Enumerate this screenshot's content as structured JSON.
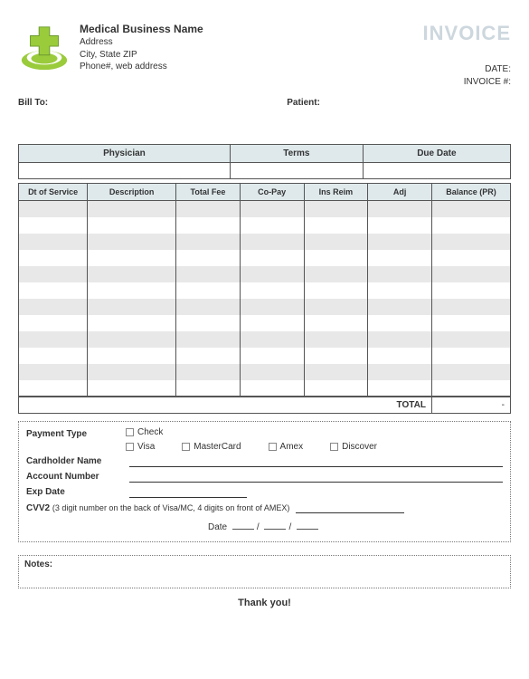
{
  "header": {
    "business_name": "Medical Business Name",
    "address": "Address",
    "city_state_zip": "City, State ZIP",
    "phone_web": "Phone#, web address",
    "invoice_label": "INVOICE",
    "date_label": "DATE:",
    "invoice_no_label": "INVOICE #:"
  },
  "parties": {
    "bill_to_label": "Bill To:",
    "patient_label": "Patient:"
  },
  "top_table": {
    "physician": "Physician",
    "terms": "Terms",
    "due_date": "Due Date"
  },
  "items_table": {
    "columns": {
      "dt": "Dt of Service",
      "desc": "Description",
      "fee": "Total Fee",
      "copay": "Co-Pay",
      "ins": "Ins Reim",
      "adj": "Adj",
      "bal": "Balance (PR)"
    },
    "row_count": 12,
    "stripe_color": "#e8e8e8",
    "header_color": "#dfe9ec",
    "total_label": "TOTAL",
    "total_value": "-"
  },
  "payment": {
    "type_label": "Payment Type",
    "options": {
      "check": "Check",
      "visa": "Visa",
      "mastercard": "MasterCard",
      "amex": "Amex",
      "discover": "Discover"
    },
    "cardholder_label": "Cardholder Name",
    "account_label": "Account Number",
    "exp_label": "Exp Date",
    "cvv_label": "CVV2",
    "cvv_note": "(3 digit number on the back of Visa/MC, 4 digits on front of AMEX)",
    "date_label": "Date"
  },
  "footer": {
    "notes_label": "Notes:",
    "thank_you": "Thank you!"
  },
  "colors": {
    "logo_green": "#9acb3b",
    "logo_dark": "#6b9a2f",
    "invoice_text": "#cdd7de"
  }
}
